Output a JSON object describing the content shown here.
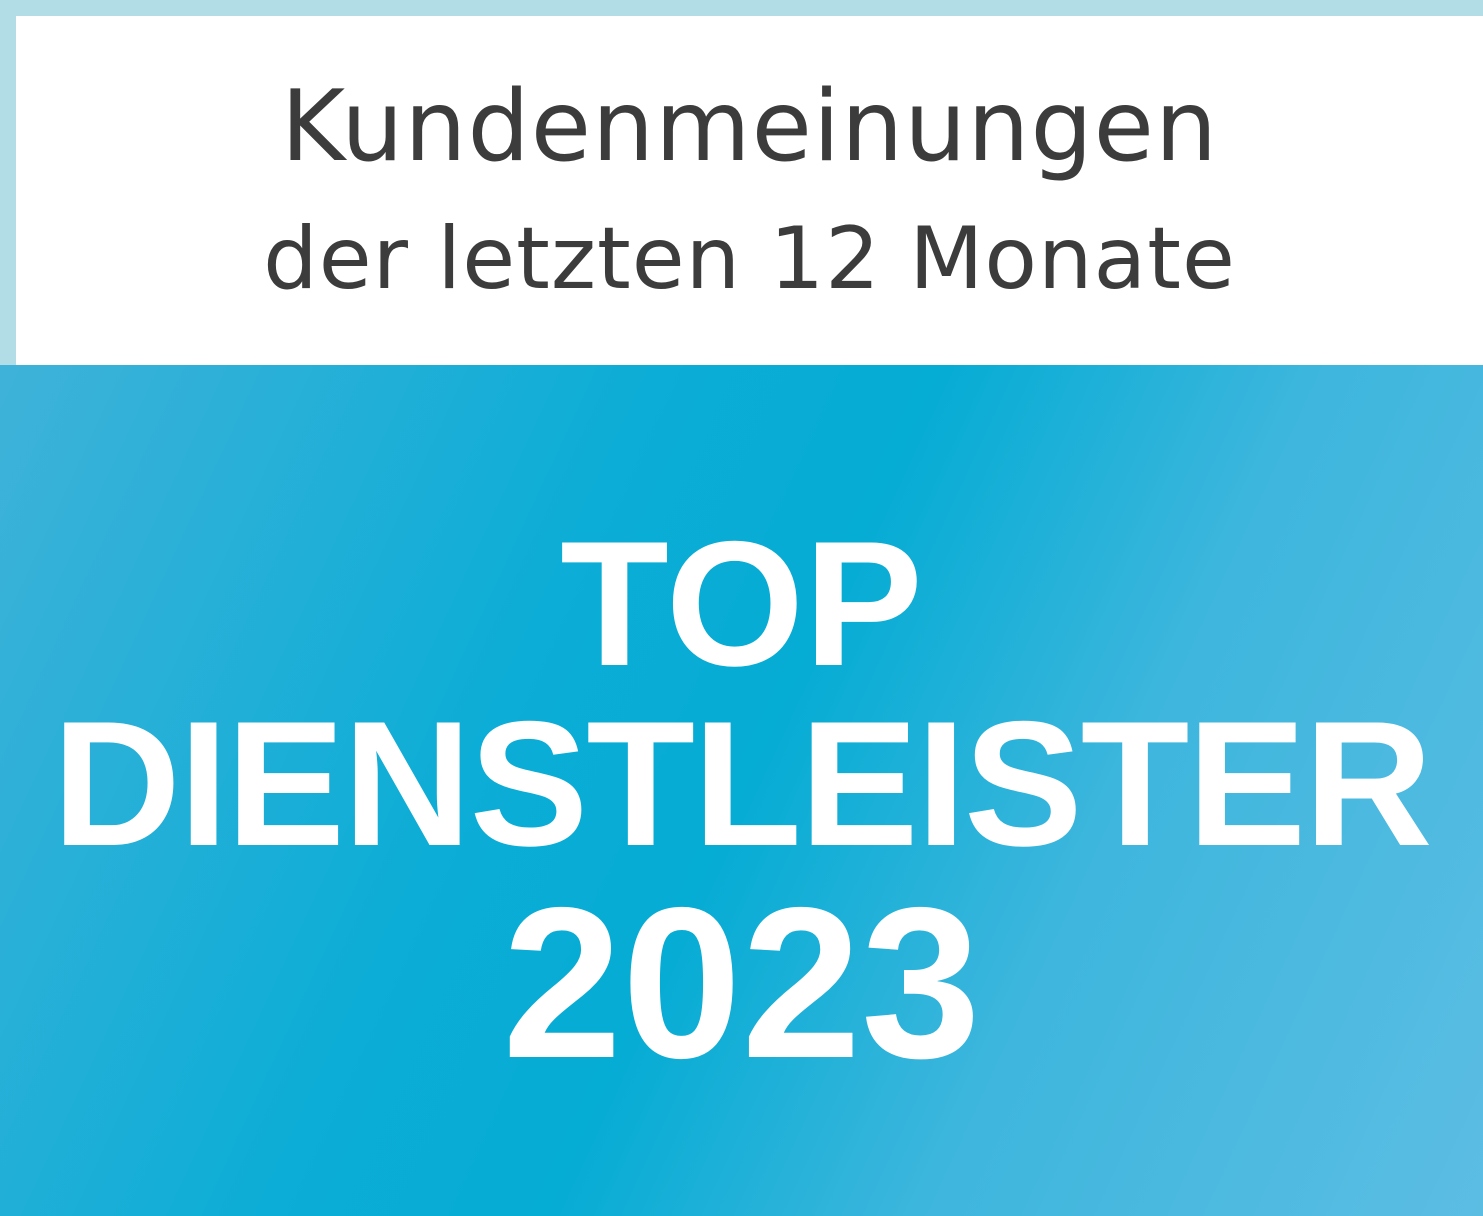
{
  "header": {
    "line1": "Kundenmeinungen",
    "line2": "der letzten 12 Monate"
  },
  "award": {
    "line1": "TOP",
    "line2": "DIENSTLEISTER",
    "year": "2023"
  },
  "colors": {
    "border": "#b2dce6",
    "accent": "#05acd4",
    "header_text": "#3c3c3c"
  }
}
